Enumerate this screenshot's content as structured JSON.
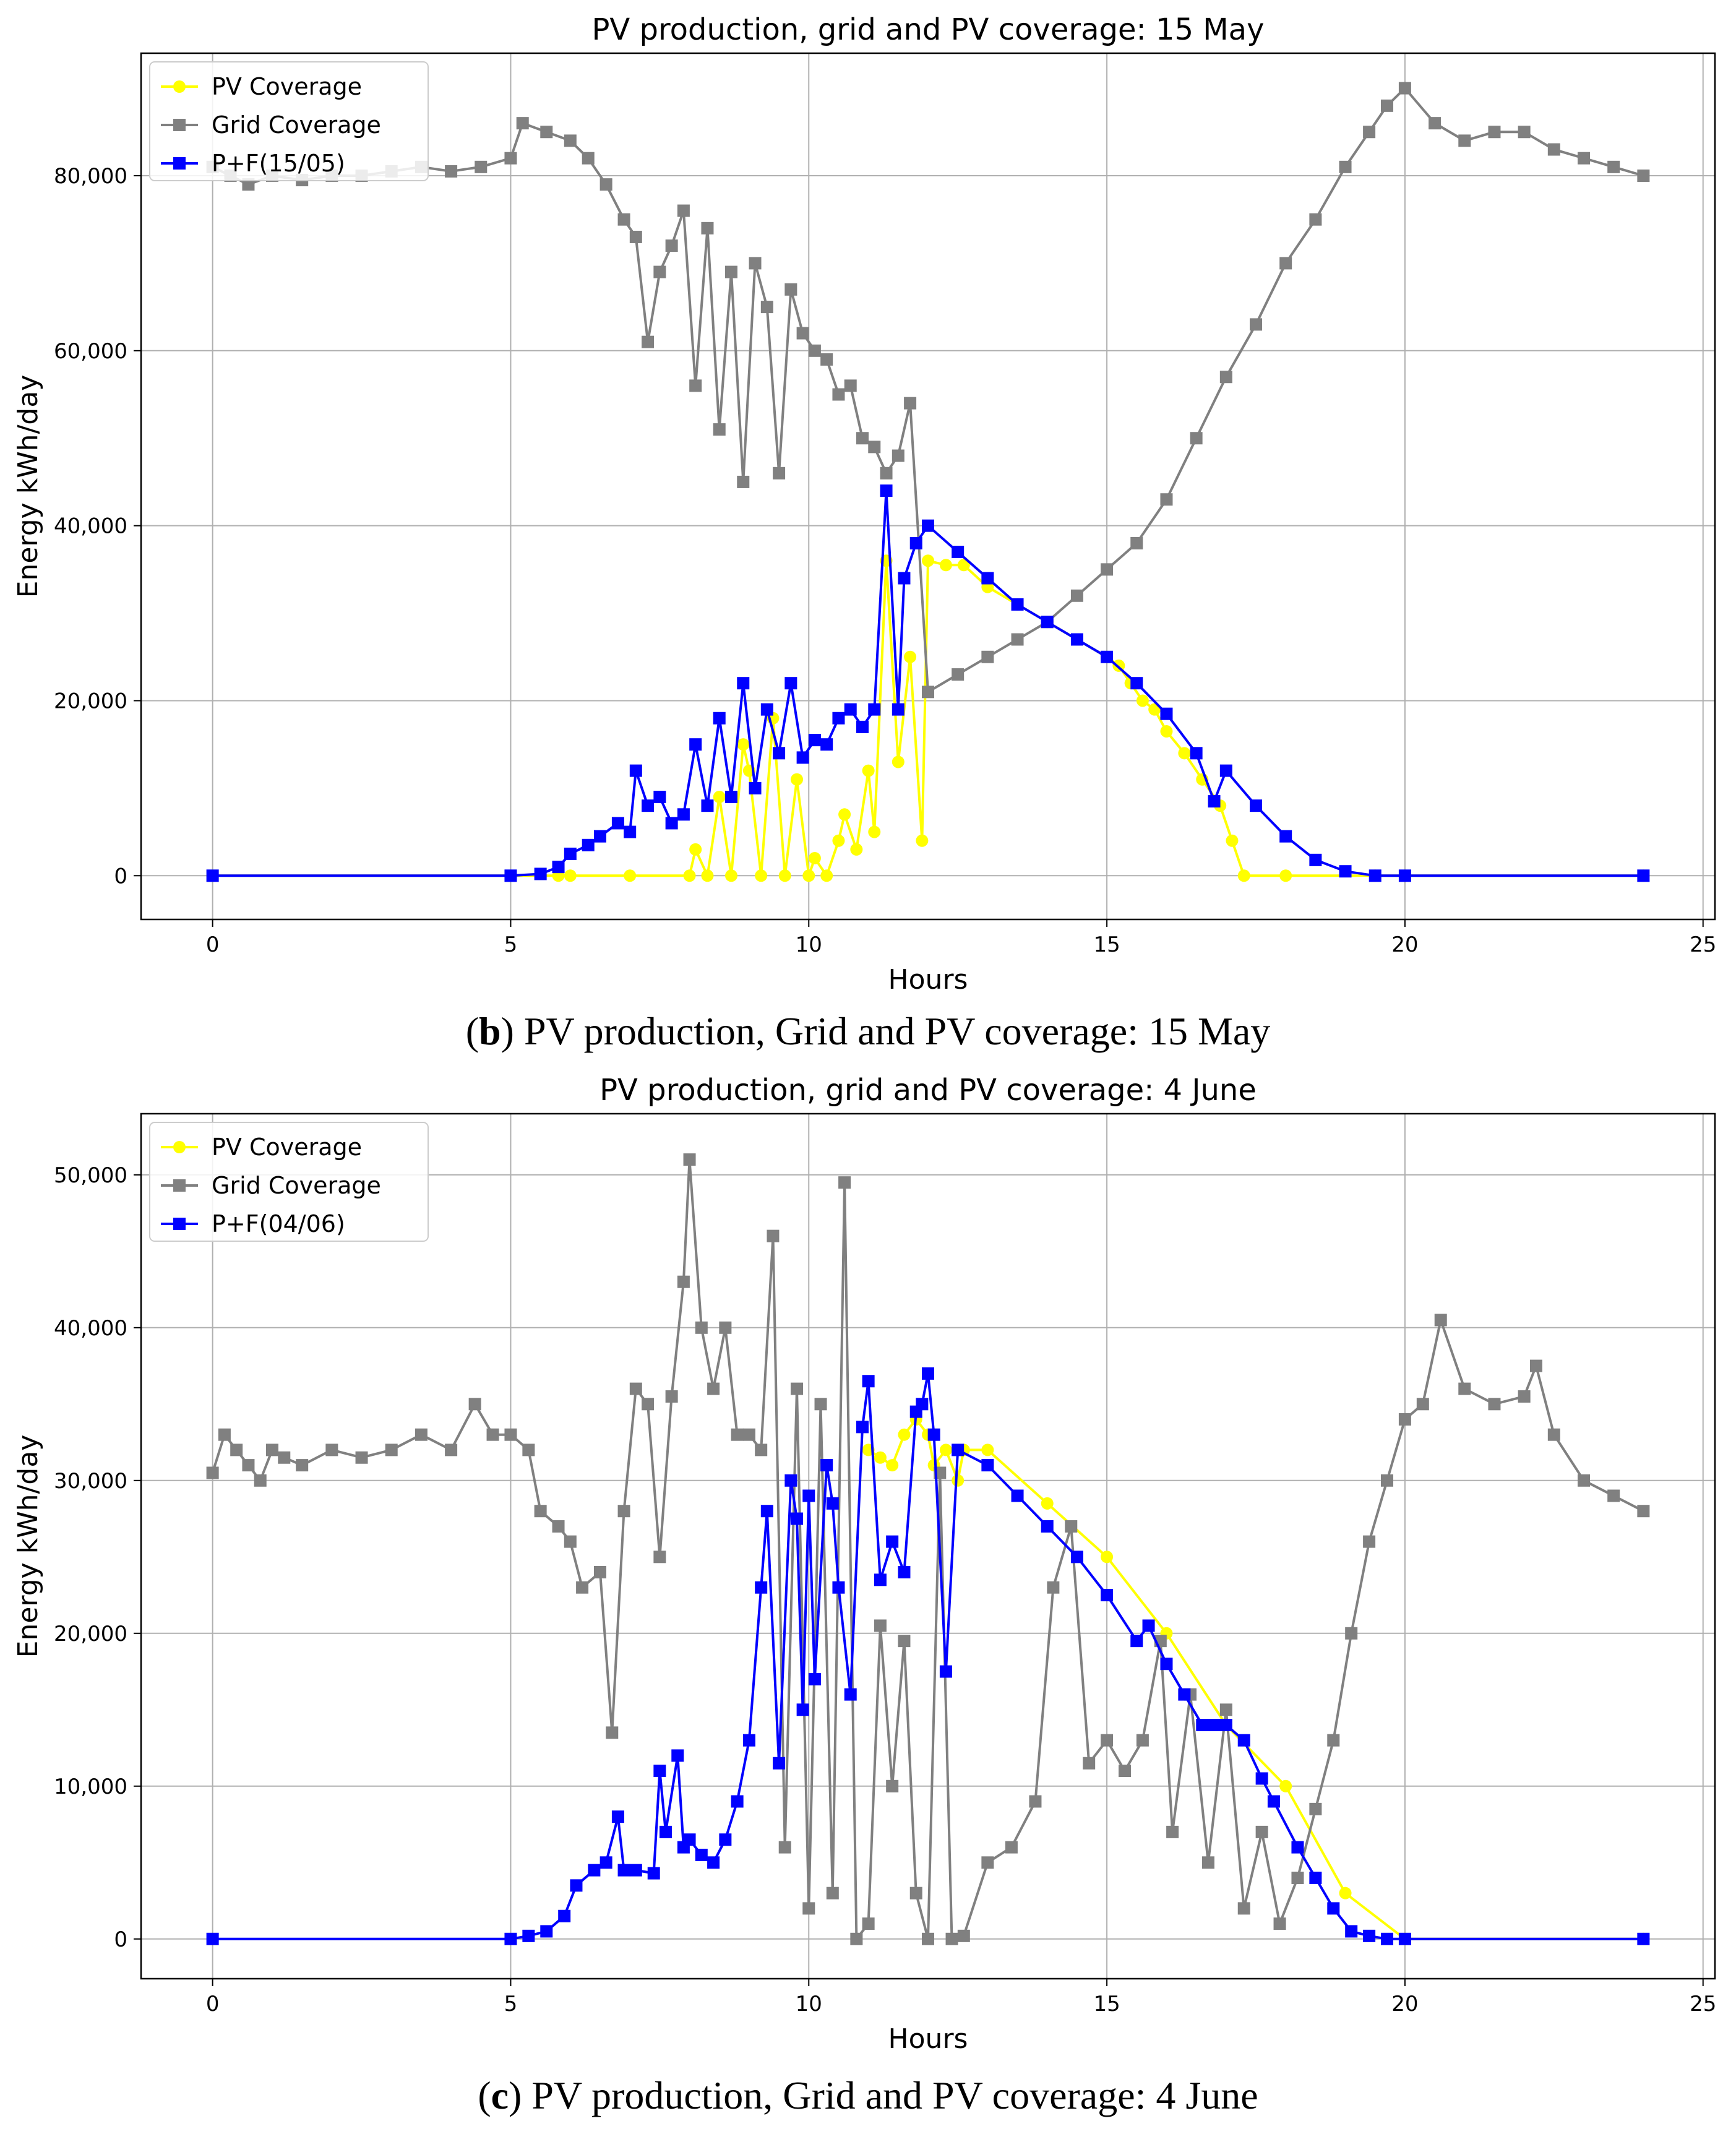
{
  "chart_data": [
    {
      "type": "line",
      "title": "PV production, grid and PV coverage: 15 May",
      "xlabel": "Hours",
      "ylabel": "Energy kWh/day",
      "xlim": [
        -1.2,
        25.2
      ],
      "ylim": [
        -5000,
        94000
      ],
      "xticks": [
        0,
        5,
        10,
        15,
        20,
        25
      ],
      "xtick_labels": [
        "0",
        "5",
        "10",
        "15",
        "20",
        "25"
      ],
      "yticks": [
        0,
        20000,
        40000,
        60000,
        80000
      ],
      "ytick_labels": [
        "0",
        "20,000",
        "40,000",
        "60,000",
        "80,000"
      ],
      "grid": true,
      "legend": "top-left",
      "series": [
        {
          "name": "PV Coverage",
          "color": "#ffff00",
          "marker": "circle",
          "x": [
            0,
            5.8,
            6,
            7,
            8,
            8.1,
            8.3,
            8.5,
            8.7,
            8.9,
            9,
            9.2,
            9.4,
            9.6,
            9.8,
            10,
            10.1,
            10.3,
            10.5,
            10.6,
            10.8,
            11,
            11.1,
            11.3,
            11.5,
            11.7,
            11.9,
            12,
            12.3,
            12.6,
            13,
            13.5,
            14,
            14.5,
            15,
            15.2,
            15.4,
            15.6,
            15.8,
            16,
            16.3,
            16.6,
            16.9,
            17.1,
            17.3,
            18,
            19.5,
            24
          ],
          "values": [
            0,
            0,
            0,
            0,
            0,
            3000,
            0,
            9000,
            0,
            15000,
            12000,
            0,
            18000,
            0,
            11000,
            0,
            2000,
            0,
            4000,
            7000,
            3000,
            12000,
            5000,
            36000,
            13000,
            25000,
            4000,
            36000,
            35500,
            35500,
            33000,
            31000,
            29000,
            27000,
            25000,
            24000,
            22000,
            20000,
            19000,
            16500,
            14000,
            11000,
            8000,
            4000,
            0,
            0,
            0,
            0
          ]
        },
        {
          "name": "Grid Coverage",
          "color": "#808080",
          "marker": "square",
          "x": [
            0,
            0.3,
            0.6,
            1,
            1.5,
            2,
            2.5,
            3,
            3.5,
            4,
            4.5,
            5,
            5.2,
            5.6,
            6,
            6.3,
            6.6,
            6.9,
            7.1,
            7.3,
            7.5,
            7.7,
            7.9,
            8.1,
            8.3,
            8.5,
            8.7,
            8.9,
            9.1,
            9.3,
            9.5,
            9.7,
            9.9,
            10.1,
            10.3,
            10.5,
            10.7,
            10.9,
            11.1,
            11.3,
            11.5,
            11.7,
            12,
            12.5,
            13,
            13.5,
            14,
            14.5,
            15,
            15.5,
            16,
            16.5,
            17,
            17.5,
            18,
            18.5,
            19,
            19.4,
            19.7,
            20,
            20.5,
            21,
            21.5,
            22,
            22.5,
            23,
            23.5,
            24
          ],
          "values": [
            81000,
            80000,
            79000,
            80000,
            79500,
            80000,
            80000,
            80500,
            81000,
            80500,
            81000,
            82000,
            86000,
            85000,
            84000,
            82000,
            79000,
            75000,
            73000,
            61000,
            69000,
            72000,
            76000,
            56000,
            74000,
            51000,
            69000,
            45000,
            70000,
            65000,
            46000,
            67000,
            62000,
            60000,
            59000,
            55000,
            56000,
            50000,
            49000,
            46000,
            48000,
            54000,
            21000,
            23000,
            25000,
            27000,
            29000,
            32000,
            35000,
            38000,
            43000,
            50000,
            57000,
            63000,
            70000,
            75000,
            81000,
            85000,
            88000,
            90000,
            86000,
            84000,
            85000,
            85000,
            83000,
            82000,
            81000,
            80000
          ]
        },
        {
          "name": "P+F(15/05)",
          "color": "#0000ff",
          "marker": "square",
          "x": [
            0,
            5,
            5.5,
            5.8,
            6,
            6.3,
            6.5,
            6.8,
            7,
            7.1,
            7.3,
            7.5,
            7.7,
            7.9,
            8.1,
            8.3,
            8.5,
            8.7,
            8.9,
            9.1,
            9.3,
            9.5,
            9.7,
            9.9,
            10.1,
            10.3,
            10.5,
            10.7,
            10.9,
            11.1,
            11.3,
            11.5,
            11.6,
            11.8,
            12,
            12.5,
            13,
            13.5,
            14,
            14.5,
            15,
            15.5,
            16,
            16.5,
            16.8,
            17,
            17.5,
            18,
            18.5,
            19,
            19.5,
            20,
            24
          ],
          "values": [
            0,
            0,
            200,
            1000,
            2500,
            3500,
            4500,
            6000,
            5000,
            12000,
            8000,
            9000,
            6000,
            7000,
            15000,
            8000,
            18000,
            9000,
            22000,
            10000,
            19000,
            14000,
            22000,
            13500,
            15500,
            15000,
            18000,
            19000,
            17000,
            19000,
            44000,
            19000,
            34000,
            38000,
            40000,
            37000,
            34000,
            31000,
            29000,
            27000,
            25000,
            22000,
            18500,
            14000,
            8500,
            12000,
            8000,
            4500,
            1800,
            500,
            0,
            0,
            0
          ]
        }
      ]
    },
    {
      "type": "line",
      "title": "PV production, grid and PV coverage: 4 June",
      "xlabel": "Hours",
      "ylabel": "Energy kWh/day",
      "xlim": [
        -1.2,
        25.2
      ],
      "ylim": [
        -2600,
        54000
      ],
      "xticks": [
        0,
        5,
        10,
        15,
        20,
        25
      ],
      "xtick_labels": [
        "0",
        "5",
        "10",
        "15",
        "20",
        "25"
      ],
      "yticks": [
        0,
        10000,
        20000,
        30000,
        40000,
        50000
      ],
      "ytick_labels": [
        "0",
        "10,000",
        "20,000",
        "30,000",
        "40,000",
        "50,000"
      ],
      "grid": true,
      "legend": "top-left",
      "series": [
        {
          "name": "PV Coverage",
          "color": "#ffff00",
          "marker": "circle",
          "x": [
            11,
            11.2,
            11.4,
            11.6,
            11.8,
            12,
            12.1,
            12.3,
            12.5,
            12.6,
            13,
            14,
            15,
            16,
            17,
            18,
            19,
            20,
            24
          ],
          "values": [
            32000,
            31500,
            31000,
            33000,
            34000,
            33000,
            31000,
            32000,
            30000,
            32000,
            32000,
            28500,
            25000,
            20000,
            14000,
            10000,
            3000,
            0,
            0
          ]
        },
        {
          "name": "Grid Coverage",
          "color": "#808080",
          "marker": "square",
          "x": [
            0,
            0.2,
            0.4,
            0.6,
            0.8,
            1,
            1.2,
            1.5,
            2,
            2.5,
            3,
            3.5,
            4,
            4.4,
            4.7,
            5,
            5.3,
            5.5,
            5.8,
            6,
            6.2,
            6.5,
            6.7,
            6.9,
            7.1,
            7.3,
            7.5,
            7.7,
            7.9,
            8,
            8.2,
            8.4,
            8.6,
            8.8,
            9,
            9.2,
            9.4,
            9.6,
            9.8,
            10,
            10.2,
            10.4,
            10.6,
            10.8,
            11,
            11.2,
            11.4,
            11.6,
            11.8,
            12,
            12.2,
            12.4,
            12.6,
            13,
            13.4,
            13.8,
            14.1,
            14.4,
            14.7,
            15,
            15.3,
            15.6,
            15.9,
            16.1,
            16.4,
            16.7,
            17,
            17.3,
            17.6,
            17.9,
            18.2,
            18.5,
            18.8,
            19.1,
            19.4,
            19.7,
            20,
            20.3,
            20.6,
            21,
            21.5,
            22,
            22.2,
            22.5,
            23,
            23.5,
            24
          ],
          "values": [
            30500,
            33000,
            32000,
            31000,
            30000,
            32000,
            31500,
            31000,
            32000,
            31500,
            32000,
            33000,
            32000,
            35000,
            33000,
            33000,
            32000,
            28000,
            27000,
            26000,
            23000,
            24000,
            13500,
            28000,
            36000,
            35000,
            25000,
            35500,
            43000,
            51000,
            40000,
            36000,
            40000,
            33000,
            33000,
            32000,
            46000,
            6000,
            36000,
            2000,
            35000,
            3000,
            49500,
            0,
            1000,
            20500,
            10000,
            19500,
            3000,
            0,
            30500,
            0,
            200,
            5000,
            6000,
            9000,
            23000,
            27000,
            11500,
            13000,
            11000,
            13000,
            19500,
            7000,
            16000,
            5000,
            15000,
            2000,
            7000,
            1000,
            4000,
            8500,
            13000,
            20000,
            26000,
            30000,
            34000,
            35000,
            40500,
            36000,
            35000,
            35500,
            37500,
            33000,
            30000,
            29000,
            28000
          ]
        },
        {
          "name": "P+F(04/06)",
          "color": "#0000ff",
          "marker": "square",
          "x": [
            0,
            5,
            5.3,
            5.6,
            5.9,
            6.1,
            6.4,
            6.6,
            6.8,
            6.9,
            7.1,
            7.4,
            7.5,
            7.6,
            7.8,
            7.9,
            8,
            8.2,
            8.4,
            8.6,
            8.8,
            9,
            9.2,
            9.3,
            9.5,
            9.7,
            9.8,
            9.9,
            10,
            10.1,
            10.3,
            10.4,
            10.5,
            10.7,
            10.9,
            11,
            11.2,
            11.4,
            11.6,
            11.8,
            11.9,
            12,
            12.1,
            12.3,
            12.5,
            13,
            13.5,
            14,
            14.5,
            15,
            15.5,
            15.7,
            16,
            16.3,
            16.6,
            16.8,
            17,
            17.3,
            17.6,
            17.8,
            18.2,
            18.5,
            18.8,
            19.1,
            19.4,
            19.7,
            20,
            24
          ],
          "values": [
            0,
            0,
            200,
            500,
            1500,
            3500,
            4500,
            5000,
            8000,
            4500,
            4500,
            4300,
            11000,
            7000,
            12000,
            6000,
            6500,
            5500,
            5000,
            6500,
            9000,
            13000,
            23000,
            28000,
            11500,
            30000,
            27500,
            15000,
            29000,
            17000,
            31000,
            28500,
            23000,
            16000,
            33500,
            36500,
            23500,
            26000,
            24000,
            34500,
            35000,
            37000,
            33000,
            17500,
            32000,
            31000,
            29000,
            27000,
            25000,
            22500,
            19500,
            20500,
            18000,
            16000,
            14000,
            14000,
            14000,
            13000,
            10500,
            9000,
            6000,
            4000,
            2000,
            500,
            200,
            0,
            0,
            0
          ]
        }
      ]
    }
  ],
  "captions": [
    {
      "label": "b",
      "text": " PV production, Grid and PV coverage: 15 May"
    },
    {
      "label": "c",
      "text": " PV production, Grid and PV coverage: 4 June"
    }
  ]
}
